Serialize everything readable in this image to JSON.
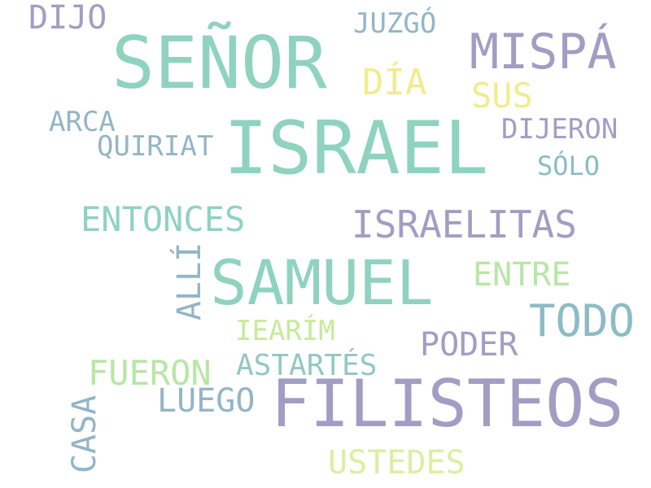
{
  "word_cloud": {
    "words": [
      {
        "text": "SEÑOR",
        "color": "#8fd3bf",
        "orientation": "horizontal"
      },
      {
        "text": "ISRAEL",
        "color": "#8fd3bf",
        "orientation": "horizontal"
      },
      {
        "text": "FILISTEOS",
        "color": "#a39dc4",
        "orientation": "horizontal"
      },
      {
        "text": "SAMUEL",
        "color": "#8fd3bf",
        "orientation": "horizontal"
      },
      {
        "text": "MISPÁ",
        "color": "#a39dc4",
        "orientation": "horizontal"
      },
      {
        "text": "ISRAELITAS",
        "color": "#a39dc4",
        "orientation": "horizontal"
      },
      {
        "text": "TODO",
        "color": "#8cbcc4",
        "orientation": "horizontal"
      },
      {
        "text": "ENTONCES",
        "color": "#8fd3bf",
        "orientation": "horizontal"
      },
      {
        "text": "FUERON",
        "color": "#b8e6a6",
        "orientation": "horizontal"
      },
      {
        "text": "LUEGO",
        "color": "#94b5c7",
        "orientation": "horizontal"
      },
      {
        "text": "DIJO",
        "color": "#a39dc4",
        "orientation": "horizontal"
      },
      {
        "text": "PODER",
        "color": "#a39dc4",
        "orientation": "horizontal"
      },
      {
        "text": "ENTRE",
        "color": "#b8e6a6",
        "orientation": "horizontal"
      },
      {
        "text": "ASTARTÉS",
        "color": "#94c7c4",
        "orientation": "horizontal"
      },
      {
        "text": "USTEDES",
        "color": "#d9f0a0",
        "orientation": "horizontal"
      },
      {
        "text": "DÍA",
        "color": "#f2ec8c",
        "orientation": "horizontal"
      },
      {
        "text": "JUZGÓ",
        "color": "#94b5c7",
        "orientation": "horizontal"
      },
      {
        "text": "SUS",
        "color": "#f2ec8c",
        "orientation": "horizontal"
      },
      {
        "text": "DIJERON",
        "color": "#a39dc4",
        "orientation": "horizontal"
      },
      {
        "text": "ARCA",
        "color": "#94b5c7",
        "orientation": "horizontal"
      },
      {
        "text": "QUIRIAT",
        "color": "#94b5c7",
        "orientation": "horizontal"
      },
      {
        "text": "SÓLO",
        "color": "#8cbcc4",
        "orientation": "horizontal"
      },
      {
        "text": "IEARÍM",
        "color": "#c7ea9a",
        "orientation": "horizontal"
      },
      {
        "text": "ALLÍ",
        "color": "#94b5c7",
        "orientation": "vertical"
      },
      {
        "text": "CASA",
        "color": "#94b5c7",
        "orientation": "vertical"
      }
    ]
  }
}
